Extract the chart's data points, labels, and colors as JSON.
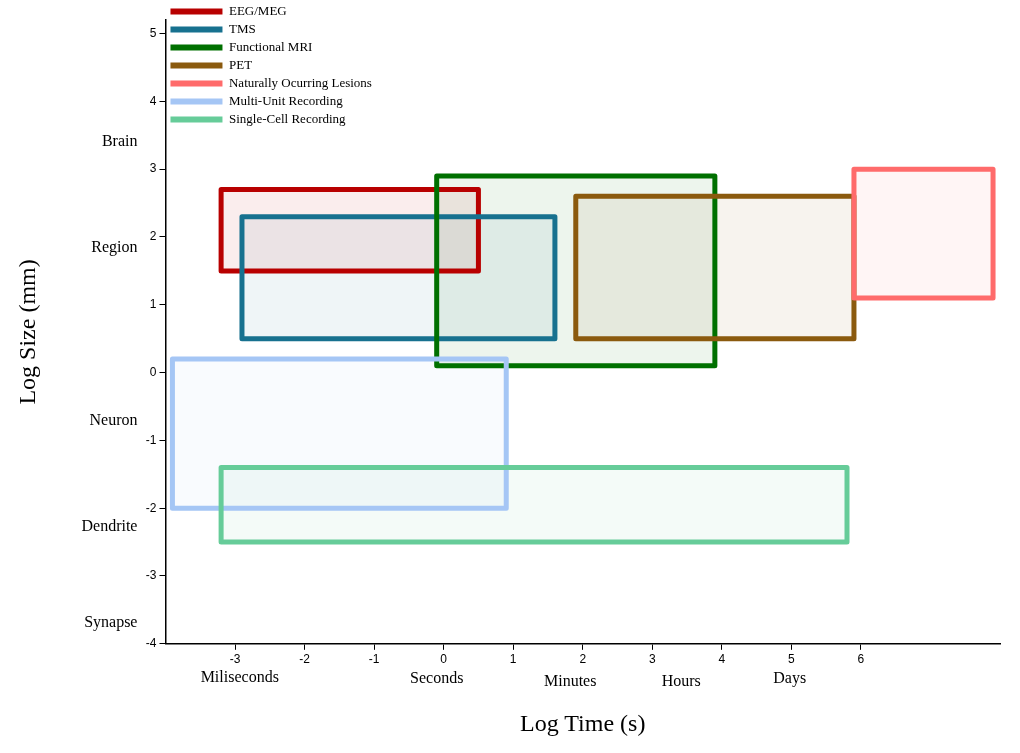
{
  "chart_data": {
    "type": "line",
    "xlabel": "Log Time (s)",
    "ylabel": "Log Size (mm)",
    "grid": false,
    "legend": "top left",
    "xlim": [
      -4,
      8
    ],
    "xticks": [
      -3,
      -2,
      -1,
      0,
      1,
      2,
      3,
      4,
      5,
      6
    ],
    "ylim": [
      -4,
      5.2
    ],
    "yticks": [
      -4,
      -3,
      -2,
      -1,
      0,
      1,
      2,
      3,
      4,
      5
    ],
    "annotations": [
      "Miliseconds",
      "Seconds",
      "Minutes",
      "Hours",
      "Days",
      "Brain",
      "Region",
      "Neuron",
      "Dendrite",
      "Synapse"
    ],
    "series": [
      {
        "name": "EEG/MEG",
        "color": "#b80000",
        "x": [
          -3.2,
          0.5
        ],
        "values": [
          null,
          null
        ],
        "lower": [
          1.5,
          1.5
        ],
        "upper": [
          2.7,
          2.7
        ]
      },
      {
        "name": "TMS",
        "color": "#17718f",
        "x": [
          -2.9,
          1.6
        ],
        "values": [
          null,
          null
        ],
        "lower": [
          0.5,
          0.5
        ],
        "upper": [
          2.3,
          2.3
        ]
      },
      {
        "name": "Functional MRI",
        "color": "#007000",
        "x": [
          -0.1,
          3.9
        ],
        "values": [
          null,
          null
        ],
        "lower": [
          0.1,
          0.1
        ],
        "upper": [
          2.9,
          2.9
        ]
      },
      {
        "name": "PET",
        "color": "#8b5a0e",
        "x": [
          1.9,
          5.9
        ],
        "values": [
          null,
          null
        ],
        "lower": [
          0.5,
          0.5
        ],
        "upper": [
          2.6,
          2.6
        ]
      },
      {
        "name": "Naturally Ocurring Lesions",
        "color": "#ff6b6b",
        "x": [
          5.9,
          7.9
        ],
        "values": [
          null,
          null
        ],
        "lower": [
          1.1,
          1.1
        ],
        "upper": [
          3.0,
          3.0
        ]
      },
      {
        "name": "Multi-Unit Recording",
        "color": "#a5c6f5",
        "x": [
          -3.9,
          0.9
        ],
        "values": [
          null,
          null
        ],
        "lower": [
          -2.0,
          -2.0
        ],
        "upper": [
          0.2,
          0.2
        ]
      },
      {
        "name": "Single-Cell Recording",
        "color": "#66cc99",
        "x": [
          -3.2,
          5.8
        ],
        "values": [
          null,
          null
        ],
        "lower": [
          -2.5,
          -2.5
        ],
        "upper": [
          -1.4,
          -1.4
        ]
      }
    ]
  }
}
